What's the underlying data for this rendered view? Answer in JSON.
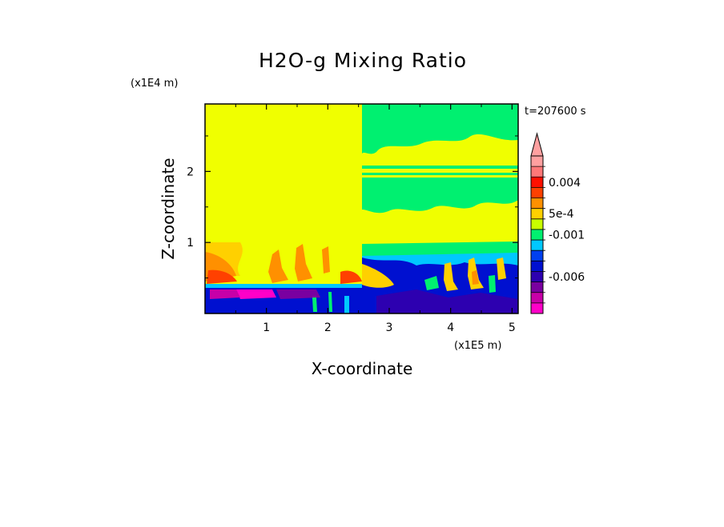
{
  "chart_data": {
    "type": "heatmap",
    "title": "H2O-g Mixing Ratio",
    "xlabel": "X-coordinate",
    "ylabel": "Z-coordinate",
    "x_unit": "(x1E5 m)",
    "y_unit": "(x1E4 m)",
    "time_label": "t=207600 s",
    "xlim": [
      0,
      5.1
    ],
    "ylim": [
      0,
      2.95
    ],
    "x_ticks": [
      "1",
      "2",
      "3",
      "4",
      "5"
    ],
    "x_tick_values": [
      1,
      2,
      3,
      4,
      5
    ],
    "y_ticks": [
      "1",
      "2"
    ],
    "y_tick_values": [
      1,
      2
    ],
    "grid": false,
    "colorbar": {
      "placement": "right",
      "extend": "max",
      "labels": [
        "0.004",
        "5e-4",
        "-0.001",
        "-0.006"
      ],
      "colors": [
        "#ff00c8",
        "#c800a8",
        "#7a00a0",
        "#2d00b0",
        "#0010d0",
        "#0040f0",
        "#00c8ff",
        "#00f070",
        "#c8ff00",
        "#ffd000",
        "#ff9000",
        "#ff4000",
        "#ff1000",
        "#ff7878",
        "#ffa0a0"
      ]
    },
    "colors": {
      "background_level": "#f0ff00",
      "moist_level": "#ff4000",
      "dry_level": "#0010d0",
      "very_dry_level": "#ff00c8",
      "humid_level": "#00f070"
    }
  }
}
